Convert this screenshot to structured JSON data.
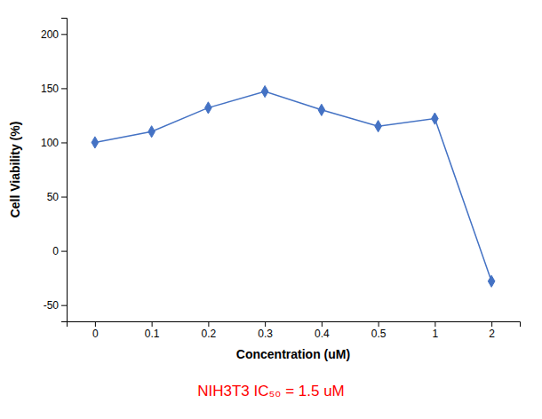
{
  "chart_data": {
    "type": "line",
    "x_label": "Concentration (uM)",
    "y_label": "Cell Viability (%)",
    "categories": [
      "0",
      "0.1",
      "0.2",
      "0.3",
      "0.4",
      "0.5",
      "1",
      "2"
    ],
    "values": [
      100,
      110,
      132,
      147,
      130,
      115,
      122,
      -28
    ],
    "color": "#4472C4",
    "marker": "diamond",
    "ylim": [
      -65,
      215
    ],
    "yticks": [
      -50,
      0,
      50,
      100,
      150,
      200
    ],
    "grid": false,
    "annotations": [
      {
        "text": "NIH3T3 IC₅₀ = 1.5 uM",
        "color": "#FF0000"
      }
    ]
  }
}
